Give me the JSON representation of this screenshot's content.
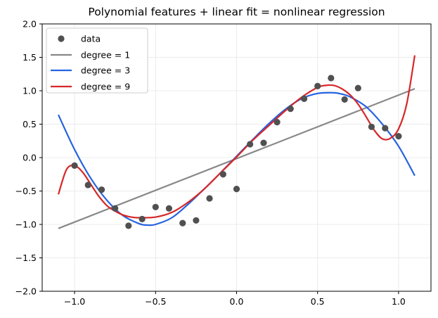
{
  "chart_data": {
    "type": "line",
    "title": "Polynomial features + linear fit = nonlinear regression",
    "xlabel": "",
    "ylabel": "",
    "xlim": [
      -1.2,
      1.2
    ],
    "ylim": [
      -2.0,
      2.0
    ],
    "x_ticks": [
      -1.0,
      -0.5,
      0.0,
      0.5,
      1.0
    ],
    "x_tick_labels": [
      "−1.0",
      "−0.5",
      "0.0",
      "0.5",
      "1.0"
    ],
    "y_ticks": [
      -2.0,
      -1.5,
      -1.0,
      -0.5,
      0.0,
      0.5,
      1.0,
      1.5,
      2.0
    ],
    "y_tick_labels": [
      "−2.0",
      "−1.5",
      "−1.0",
      "−0.5",
      "0.0",
      "0.5",
      "1.0",
      "1.5",
      "2.0"
    ],
    "grid": true,
    "legend_position": "top-left",
    "scatter": {
      "name": "data",
      "color": "#505050",
      "x": [
        -1.0,
        -0.917,
        -0.833,
        -0.75,
        -0.667,
        -0.583,
        -0.5,
        -0.417,
        -0.333,
        -0.25,
        -0.167,
        -0.083,
        0.0,
        0.083,
        0.167,
        0.25,
        0.333,
        0.417,
        0.5,
        0.583,
        0.667,
        0.75,
        0.833,
        0.917,
        1.0
      ],
      "y": [
        -0.12,
        -0.41,
        -0.48,
        -0.76,
        -1.02,
        -0.92,
        -0.74,
        -0.76,
        -0.98,
        -0.94,
        -0.61,
        -0.25,
        -0.47,
        0.2,
        0.22,
        0.53,
        0.73,
        0.88,
        1.07,
        1.19,
        0.87,
        1.04,
        0.46,
        0.44,
        0.32
      ]
    },
    "series": [
      {
        "name": "degree = 1",
        "color": "#888888",
        "x": [
          -1.1,
          1.1
        ],
        "y": [
          -1.06,
          1.03
        ]
      },
      {
        "name": "degree = 3",
        "color": "#2563e0",
        "x": [
          -1.1,
          -1.0,
          -0.9,
          -0.8,
          -0.7,
          -0.6,
          -0.55,
          -0.5,
          -0.4,
          -0.3,
          -0.2,
          -0.1,
          0.0,
          0.1,
          0.2,
          0.3,
          0.4,
          0.5,
          0.6,
          0.65,
          0.7,
          0.8,
          0.9,
          1.0,
          1.1
        ],
        "y": [
          0.64,
          0.12,
          -0.31,
          -0.64,
          -0.87,
          -0.99,
          -1.01,
          -1.0,
          -0.9,
          -0.7,
          -0.47,
          -0.23,
          0.02,
          0.27,
          0.51,
          0.72,
          0.88,
          0.96,
          0.97,
          0.95,
          0.91,
          0.76,
          0.5,
          0.17,
          -0.27
        ]
      },
      {
        "name": "degree = 9",
        "color": "#d62728",
        "x": [
          -1.1,
          -1.05,
          -1.0,
          -0.95,
          -0.9,
          -0.85,
          -0.8,
          -0.75,
          -0.7,
          -0.65,
          -0.6,
          -0.5,
          -0.4,
          -0.3,
          -0.2,
          -0.1,
          0.0,
          0.1,
          0.2,
          0.3,
          0.4,
          0.5,
          0.55,
          0.6,
          0.65,
          0.7,
          0.75,
          0.8,
          0.85,
          0.9,
          0.95,
          1.0,
          1.05,
          1.1
        ],
        "y": [
          -0.55,
          -0.18,
          -0.12,
          -0.22,
          -0.4,
          -0.58,
          -0.72,
          -0.8,
          -0.86,
          -0.89,
          -0.9,
          -0.89,
          -0.82,
          -0.67,
          -0.47,
          -0.23,
          0.01,
          0.26,
          0.48,
          0.7,
          0.9,
          1.05,
          1.08,
          1.08,
          1.03,
          0.94,
          0.8,
          0.61,
          0.41,
          0.28,
          0.29,
          0.43,
          0.8,
          1.53
        ]
      }
    ]
  }
}
